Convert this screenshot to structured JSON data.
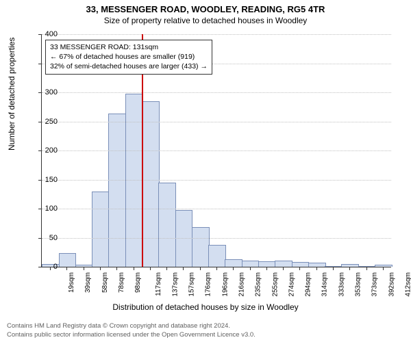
{
  "title_main": "33, MESSENGER ROAD, WOODLEY, READING, RG5 4TR",
  "title_sub": "Size of property relative to detached houses in Woodley",
  "y_axis_label": "Number of detached properties",
  "x_axis_label": "Distribution of detached houses by size in Woodley",
  "chart": {
    "type": "histogram",
    "ylim": [
      0,
      400
    ],
    "ytick_step": 50,
    "bar_fill": "#d3def0",
    "bar_stroke": "#7a8fb8",
    "grid_color": "#c0c0c0",
    "background_color": "#ffffff",
    "marker_color": "#cc0000",
    "categories": [
      "19sqm",
      "39sqm",
      "58sqm",
      "78sqm",
      "98sqm",
      "117sqm",
      "137sqm",
      "157sqm",
      "176sqm",
      "196sqm",
      "216sqm",
      "235sqm",
      "255sqm",
      "274sqm",
      "294sqm",
      "314sqm",
      "333sqm",
      "353sqm",
      "373sqm",
      "392sqm",
      "412sqm"
    ],
    "values": [
      3,
      22,
      2,
      128,
      262,
      296,
      283,
      143,
      96,
      67,
      36,
      12,
      10,
      8,
      10,
      7,
      6,
      0,
      4,
      0,
      2
    ],
    "marker_index": 6
  },
  "info_box": {
    "line1": "33 MESSENGER ROAD: 131sqm",
    "line2": "← 67% of detached houses are smaller (919)",
    "line3": "32% of semi-detached houses are larger (433) →"
  },
  "footer": {
    "line1": "Contains HM Land Registry data © Crown copyright and database right 2024.",
    "line2": "Contains public sector information licensed under the Open Government Licence v3.0."
  }
}
